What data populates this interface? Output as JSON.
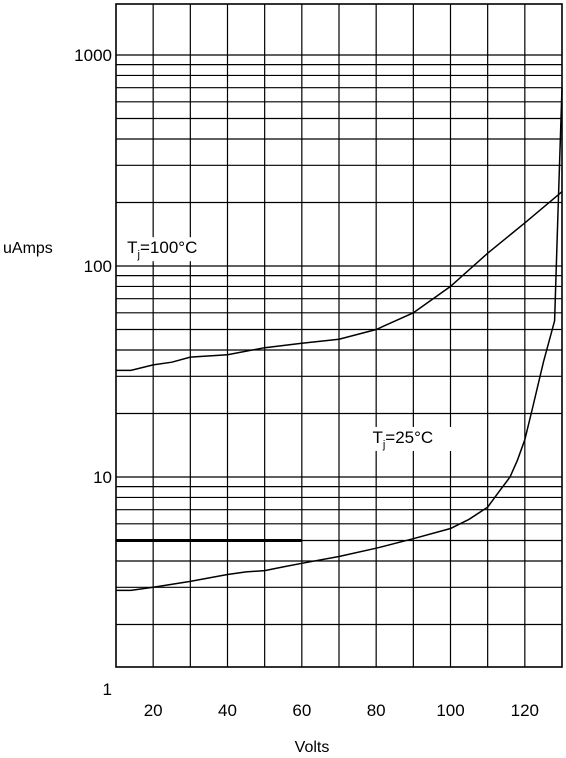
{
  "chart_data": {
    "type": "line",
    "title": "",
    "xlabel": "Volts",
    "ylabel": "uAmps",
    "xlim": [
      10,
      130
    ],
    "ylim": [
      1,
      2000
    ],
    "yscale": "log",
    "grid": true,
    "x_ticks": [
      "20",
      "40",
      "60",
      "80",
      "100",
      "120"
    ],
    "x_tick_values": [
      20,
      40,
      60,
      80,
      100,
      120
    ],
    "y_ticks": [
      "1",
      "10",
      "100",
      "1000"
    ],
    "y_tick_values": [
      1,
      10,
      100,
      1000
    ],
    "series": [
      {
        "annotation": {
          "main": "T",
          "sub": "j",
          "rest": "=100°C",
          "x": 13,
          "y": 115
        },
        "x": [
          10,
          14,
          20,
          25,
          30,
          40,
          50,
          55,
          60,
          65,
          70,
          80,
          90,
          100,
          110,
          120,
          130
        ],
        "y": [
          32,
          32,
          34,
          35,
          37,
          38,
          41,
          42,
          43,
          44,
          45,
          50,
          60,
          80,
          115,
          160,
          225
        ]
      },
      {
        "annotation": {
          "main": "T",
          "sub": "j",
          "rest": "=25°C",
          "x": 79,
          "y": 14.5
        },
        "x": [
          10,
          14,
          20,
          30,
          40,
          45,
          50,
          55,
          60,
          70,
          80,
          90,
          100,
          105,
          110,
          113,
          116,
          118,
          120,
          122,
          125,
          128,
          129,
          130
        ],
        "y": [
          2.9,
          2.9,
          3.0,
          3.2,
          3.45,
          3.55,
          3.6,
          3.75,
          3.9,
          4.2,
          4.6,
          5.1,
          5.7,
          6.3,
          7.2,
          8.5,
          10,
          12,
          15,
          21,
          35,
          55,
          200,
          700
        ]
      }
    ],
    "reference_line": {
      "x_start": 10,
      "x_end": 60,
      "y": 5
    }
  }
}
